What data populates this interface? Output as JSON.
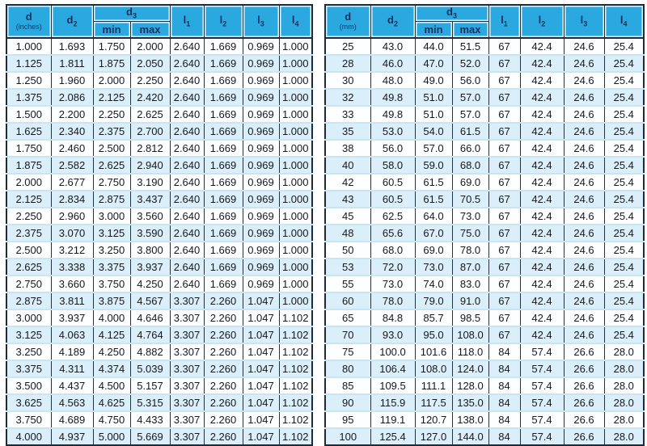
{
  "colors": {
    "header_bg": "#2aa9e0",
    "header_text": "#17305f",
    "grid_dark": "#1d2a3a",
    "grid_mid": "#2b313b",
    "grid_light": "#c6e6f6",
    "row_bg": "#fdfeff",
    "row_alt_bg": "#daeffa"
  },
  "tables": [
    {
      "id": "inches",
      "head": {
        "d_base": "d",
        "d_unit": "(inches)",
        "d2_base": "d",
        "d2_sub": "2",
        "d3_base": "d",
        "d3_sub": "3",
        "min": "min",
        "max": "max",
        "l1_base": "l",
        "l1_sub": "1",
        "l2_base": "l",
        "l2_sub": "2",
        "l3_base": "l",
        "l3_sub": "3",
        "l4_base": "l",
        "l4_sub": "4"
      },
      "rows": [
        [
          "1.000",
          "1.693",
          "1.750",
          "2.000",
          "2.640",
          "1.669",
          "0.969",
          "1.000"
        ],
        [
          "1.125",
          "1.811",
          "1.875",
          "2.050",
          "2.640",
          "1.669",
          "0.969",
          "1.000"
        ],
        [
          "1.250",
          "1.960",
          "2.000",
          "2.250",
          "2.640",
          "1.669",
          "0.969",
          "1.000"
        ],
        [
          "1.375",
          "2.086",
          "2.125",
          "2.420",
          "2.640",
          "1.669",
          "0.969",
          "1.000"
        ],
        [
          "1.500",
          "2.200",
          "2.250",
          "2.625",
          "2.640",
          "1.669",
          "0.969",
          "1.000"
        ],
        [
          "1.625",
          "2.340",
          "2.375",
          "2.700",
          "2.640",
          "1.669",
          "0.969",
          "1.000"
        ],
        [
          "1.750",
          "2.460",
          "2.500",
          "2.812",
          "2.640",
          "1.669",
          "0.969",
          "1.000"
        ],
        [
          "1.875",
          "2.582",
          "2.625",
          "2.940",
          "2.640",
          "1.669",
          "0.969",
          "1.000"
        ],
        [
          "2.000",
          "2.677",
          "2.750",
          "3.190",
          "2.640",
          "1.669",
          "0.969",
          "1.000"
        ],
        [
          "2.125",
          "2.834",
          "2.875",
          "3.437",
          "2.640",
          "1.669",
          "0.969",
          "1.000"
        ],
        [
          "2.250",
          "2.960",
          "3.000",
          "3.560",
          "2.640",
          "1.669",
          "0.969",
          "1.000"
        ],
        [
          "2.375",
          "3.070",
          "3.125",
          "3.590",
          "2.640",
          "1.669",
          "0.969",
          "1.000"
        ],
        [
          "2.500",
          "3.212",
          "3.250",
          "3.800",
          "2.640",
          "1.669",
          "0.969",
          "1.000"
        ],
        [
          "2.625",
          "3.338",
          "3.375",
          "3.937",
          "2.640",
          "1.669",
          "0.969",
          "1.000"
        ],
        [
          "2.750",
          "3.660",
          "3.750",
          "4.250",
          "2.640",
          "1.669",
          "0.969",
          "1.000"
        ],
        [
          "2.875",
          "3.811",
          "3.875",
          "4.567",
          "3.307",
          "2.260",
          "1.047",
          "1.000"
        ],
        [
          "3.000",
          "3.937",
          "4.000",
          "4.646",
          "3.307",
          "2.260",
          "1.047",
          "1.102"
        ],
        [
          "3.125",
          "4.063",
          "4.125",
          "4.764",
          "3.307",
          "2.260",
          "1.047",
          "1.102"
        ],
        [
          "3.250",
          "4.189",
          "4.250",
          "4.882",
          "3.307",
          "2.260",
          "1.047",
          "1.102"
        ],
        [
          "3.375",
          "4.311",
          "4.374",
          "5.039",
          "3.307",
          "2.260",
          "1.047",
          "1.102"
        ],
        [
          "3.500",
          "4.437",
          "4.500",
          "5.157",
          "3.307",
          "2.260",
          "1.047",
          "1.102"
        ],
        [
          "3.625",
          "4.563",
          "4.625",
          "5.315",
          "3.307",
          "2.260",
          "1.047",
          "1.102"
        ],
        [
          "3.750",
          "4.689",
          "4.750",
          "4.433",
          "3.307",
          "2.260",
          "1.047",
          "1.102"
        ],
        [
          "4.000",
          "4.937",
          "5.000",
          "5.669",
          "3.307",
          "2.260",
          "1.047",
          "1.102"
        ]
      ]
    },
    {
      "id": "mm",
      "head": {
        "d_base": "d",
        "d_unit": "(mm)",
        "d2_base": "d",
        "d2_sub": "2",
        "d3_base": "d",
        "d3_sub": "3",
        "min": "min",
        "max": "max",
        "l1_base": "l",
        "l1_sub": "1",
        "l2_base": "l",
        "l2_sub": "2",
        "l3_base": "l",
        "l3_sub": "3",
        "l4_base": "l",
        "l4_sub": "4"
      },
      "rows": [
        [
          "25",
          "43.0",
          "44.0",
          "51.5",
          "67",
          "42.4",
          "24.6",
          "25.4"
        ],
        [
          "28",
          "46.0",
          "47.0",
          "52.0",
          "67",
          "42.4",
          "24.6",
          "25.4"
        ],
        [
          "30",
          "48.0",
          "49.0",
          "56.0",
          "67",
          "42.4",
          "24.6",
          "25.4"
        ],
        [
          "32",
          "49.8",
          "51.0",
          "57.0",
          "67",
          "42.4",
          "24.6",
          "25.4"
        ],
        [
          "33",
          "49.8",
          "51.0",
          "57.0",
          "67",
          "42.4",
          "24.6",
          "25.4"
        ],
        [
          "35",
          "53.0",
          "54.0",
          "61.5",
          "67",
          "42.4",
          "24.6",
          "25.4"
        ],
        [
          "38",
          "56.0",
          "57.0",
          "66.0",
          "67",
          "42.4",
          "24.6",
          "25.4"
        ],
        [
          "40",
          "58.0",
          "59.0",
          "68.0",
          "67",
          "42.4",
          "24.6",
          "25.4"
        ],
        [
          "42",
          "60.5",
          "61.5",
          "69.0",
          "67",
          "42.4",
          "24.6",
          "25.4"
        ],
        [
          "43",
          "60.5",
          "61.5",
          "70.5",
          "67",
          "42.4",
          "24.6",
          "25.4"
        ],
        [
          "45",
          "62.5",
          "64.0",
          "73.0",
          "67",
          "42.4",
          "24.6",
          "25.4"
        ],
        [
          "48",
          "65.6",
          "67.0",
          "75.0",
          "67",
          "42.4",
          "24.6",
          "25.4"
        ],
        [
          "50",
          "68.0",
          "69.0",
          "78.0",
          "67",
          "42.4",
          "24.6",
          "25.4"
        ],
        [
          "53",
          "72.0",
          "73.0",
          "87.0",
          "67",
          "42.4",
          "24.6",
          "25.4"
        ],
        [
          "55",
          "73.0",
          "74.0",
          "83.0",
          "67",
          "42.4",
          "24.6",
          "25.4"
        ],
        [
          "60",
          "78.0",
          "79.0",
          "91.0",
          "67",
          "42.4",
          "24.6",
          "25.4"
        ],
        [
          "65",
          "84.8",
          "85.7",
          "98.5",
          "67",
          "42.4",
          "24.6",
          "25.4"
        ],
        [
          "70",
          "93.0",
          "95.0",
          "108.0",
          "67",
          "42.4",
          "24.6",
          "25.4"
        ],
        [
          "75",
          "100.0",
          "101.6",
          "118.0",
          "84",
          "57.4",
          "26.6",
          "28.0"
        ],
        [
          "80",
          "106.4",
          "108.0",
          "124.0",
          "84",
          "57.4",
          "26.6",
          "28.0"
        ],
        [
          "85",
          "109.5",
          "111.1",
          "128.0",
          "84",
          "57.4",
          "26.6",
          "28.0"
        ],
        [
          "90",
          "115.9",
          "117.5",
          "135.0",
          "84",
          "57.4",
          "26.6",
          "28.0"
        ],
        [
          "95",
          "119.1",
          "120.7",
          "138.0",
          "84",
          "57.4",
          "26.6",
          "28.0"
        ],
        [
          "100",
          "125.4",
          "127.0",
          "144.0",
          "84",
          "57.4",
          "26.6",
          "28.0"
        ]
      ]
    }
  ]
}
